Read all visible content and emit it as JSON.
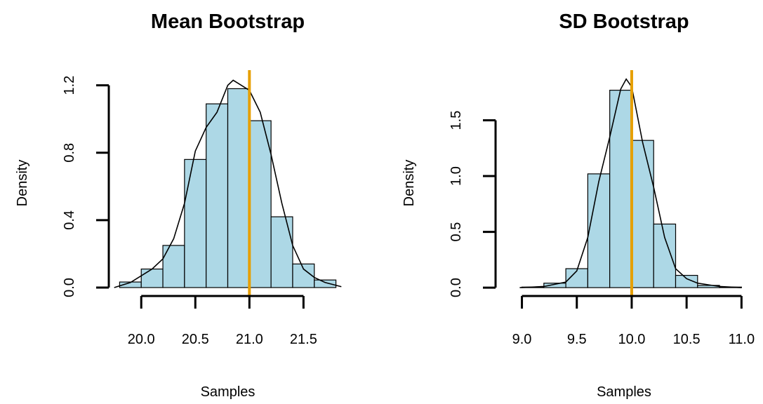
{
  "chart_data": [
    {
      "type": "histogram",
      "title": "Mean Bootstrap",
      "xlabel": "Samples",
      "ylabel": "Density",
      "bins": [
        19.8,
        20.0,
        20.2,
        20.4,
        20.6,
        20.8,
        21.0,
        21.2,
        21.4,
        21.6,
        21.8
      ],
      "values": [
        0.033,
        0.11,
        0.25,
        0.76,
        1.09,
        1.18,
        0.99,
        0.42,
        0.14,
        0.045
      ],
      "color": "#add8e6",
      "density": {
        "x": [
          19.75,
          19.9,
          20.0,
          20.1,
          20.2,
          20.3,
          20.4,
          20.5,
          20.6,
          20.7,
          20.8,
          20.85,
          20.9,
          21.0,
          21.1,
          21.2,
          21.3,
          21.4,
          21.5,
          21.6,
          21.7,
          21.85
        ],
        "y": [
          0.0,
          0.03,
          0.07,
          0.11,
          0.17,
          0.29,
          0.5,
          0.81,
          0.95,
          1.04,
          1.2,
          1.23,
          1.21,
          1.17,
          1.04,
          0.79,
          0.5,
          0.25,
          0.11,
          0.06,
          0.03,
          0.005
        ],
        "color": "#000000"
      },
      "vline": 21.0,
      "vline_color": "#e69f00",
      "xlim": [
        19.7,
        21.9
      ],
      "ylim": [
        -0.05,
        1.29
      ],
      "xticks": [
        {
          "value": 20.0,
          "label": "20.0"
        },
        20.5,
        {
          "value": 21.0,
          "label": "21.0"
        },
        21.5
      ],
      "yticks": [
        {
          "value": 0,
          "label": "0.0"
        },
        0.4,
        0.8,
        1.2
      ]
    },
    {
      "type": "histogram",
      "title": "SD Bootstrap",
      "xlabel": "Samples",
      "ylabel": "Density",
      "bins": [
        9.0,
        9.2,
        9.4,
        9.6,
        9.8,
        10.0,
        10.2,
        10.4,
        10.6,
        10.8,
        11.0
      ],
      "values": [
        0.005,
        0.04,
        0.17,
        1.02,
        1.77,
        1.32,
        0.57,
        0.11,
        0.02,
        0.005
      ],
      "color": "#add8e6",
      "density": {
        "x": [
          8.98,
          9.2,
          9.4,
          9.5,
          9.6,
          9.7,
          9.8,
          9.9,
          9.95,
          10.0,
          10.1,
          10.2,
          10.3,
          10.4,
          10.5,
          10.6,
          10.8,
          11.0
        ],
        "y": [
          0.0,
          0.01,
          0.05,
          0.15,
          0.45,
          0.95,
          1.35,
          1.78,
          1.87,
          1.8,
          1.3,
          0.9,
          0.45,
          0.17,
          0.08,
          0.04,
          0.01,
          0.0
        ],
        "color": "#000000"
      },
      "vline": 10.0,
      "vline_color": "#e69f00",
      "xlim": [
        8.76,
        11.1
      ],
      "ylim": [
        -0.075,
        1.95
      ],
      "xticks": [
        {
          "value": 9.0,
          "label": "9.0"
        },
        9.5,
        {
          "value": 10.0,
          "label": "10.0"
        },
        10.5,
        {
          "value": 11.0,
          "label": "11.0"
        }
      ],
      "yticks": [
        {
          "value": 0,
          "label": "0.0"
        },
        0.5,
        {
          "value": 1.0,
          "label": "1.0"
        },
        1.5
      ]
    }
  ]
}
